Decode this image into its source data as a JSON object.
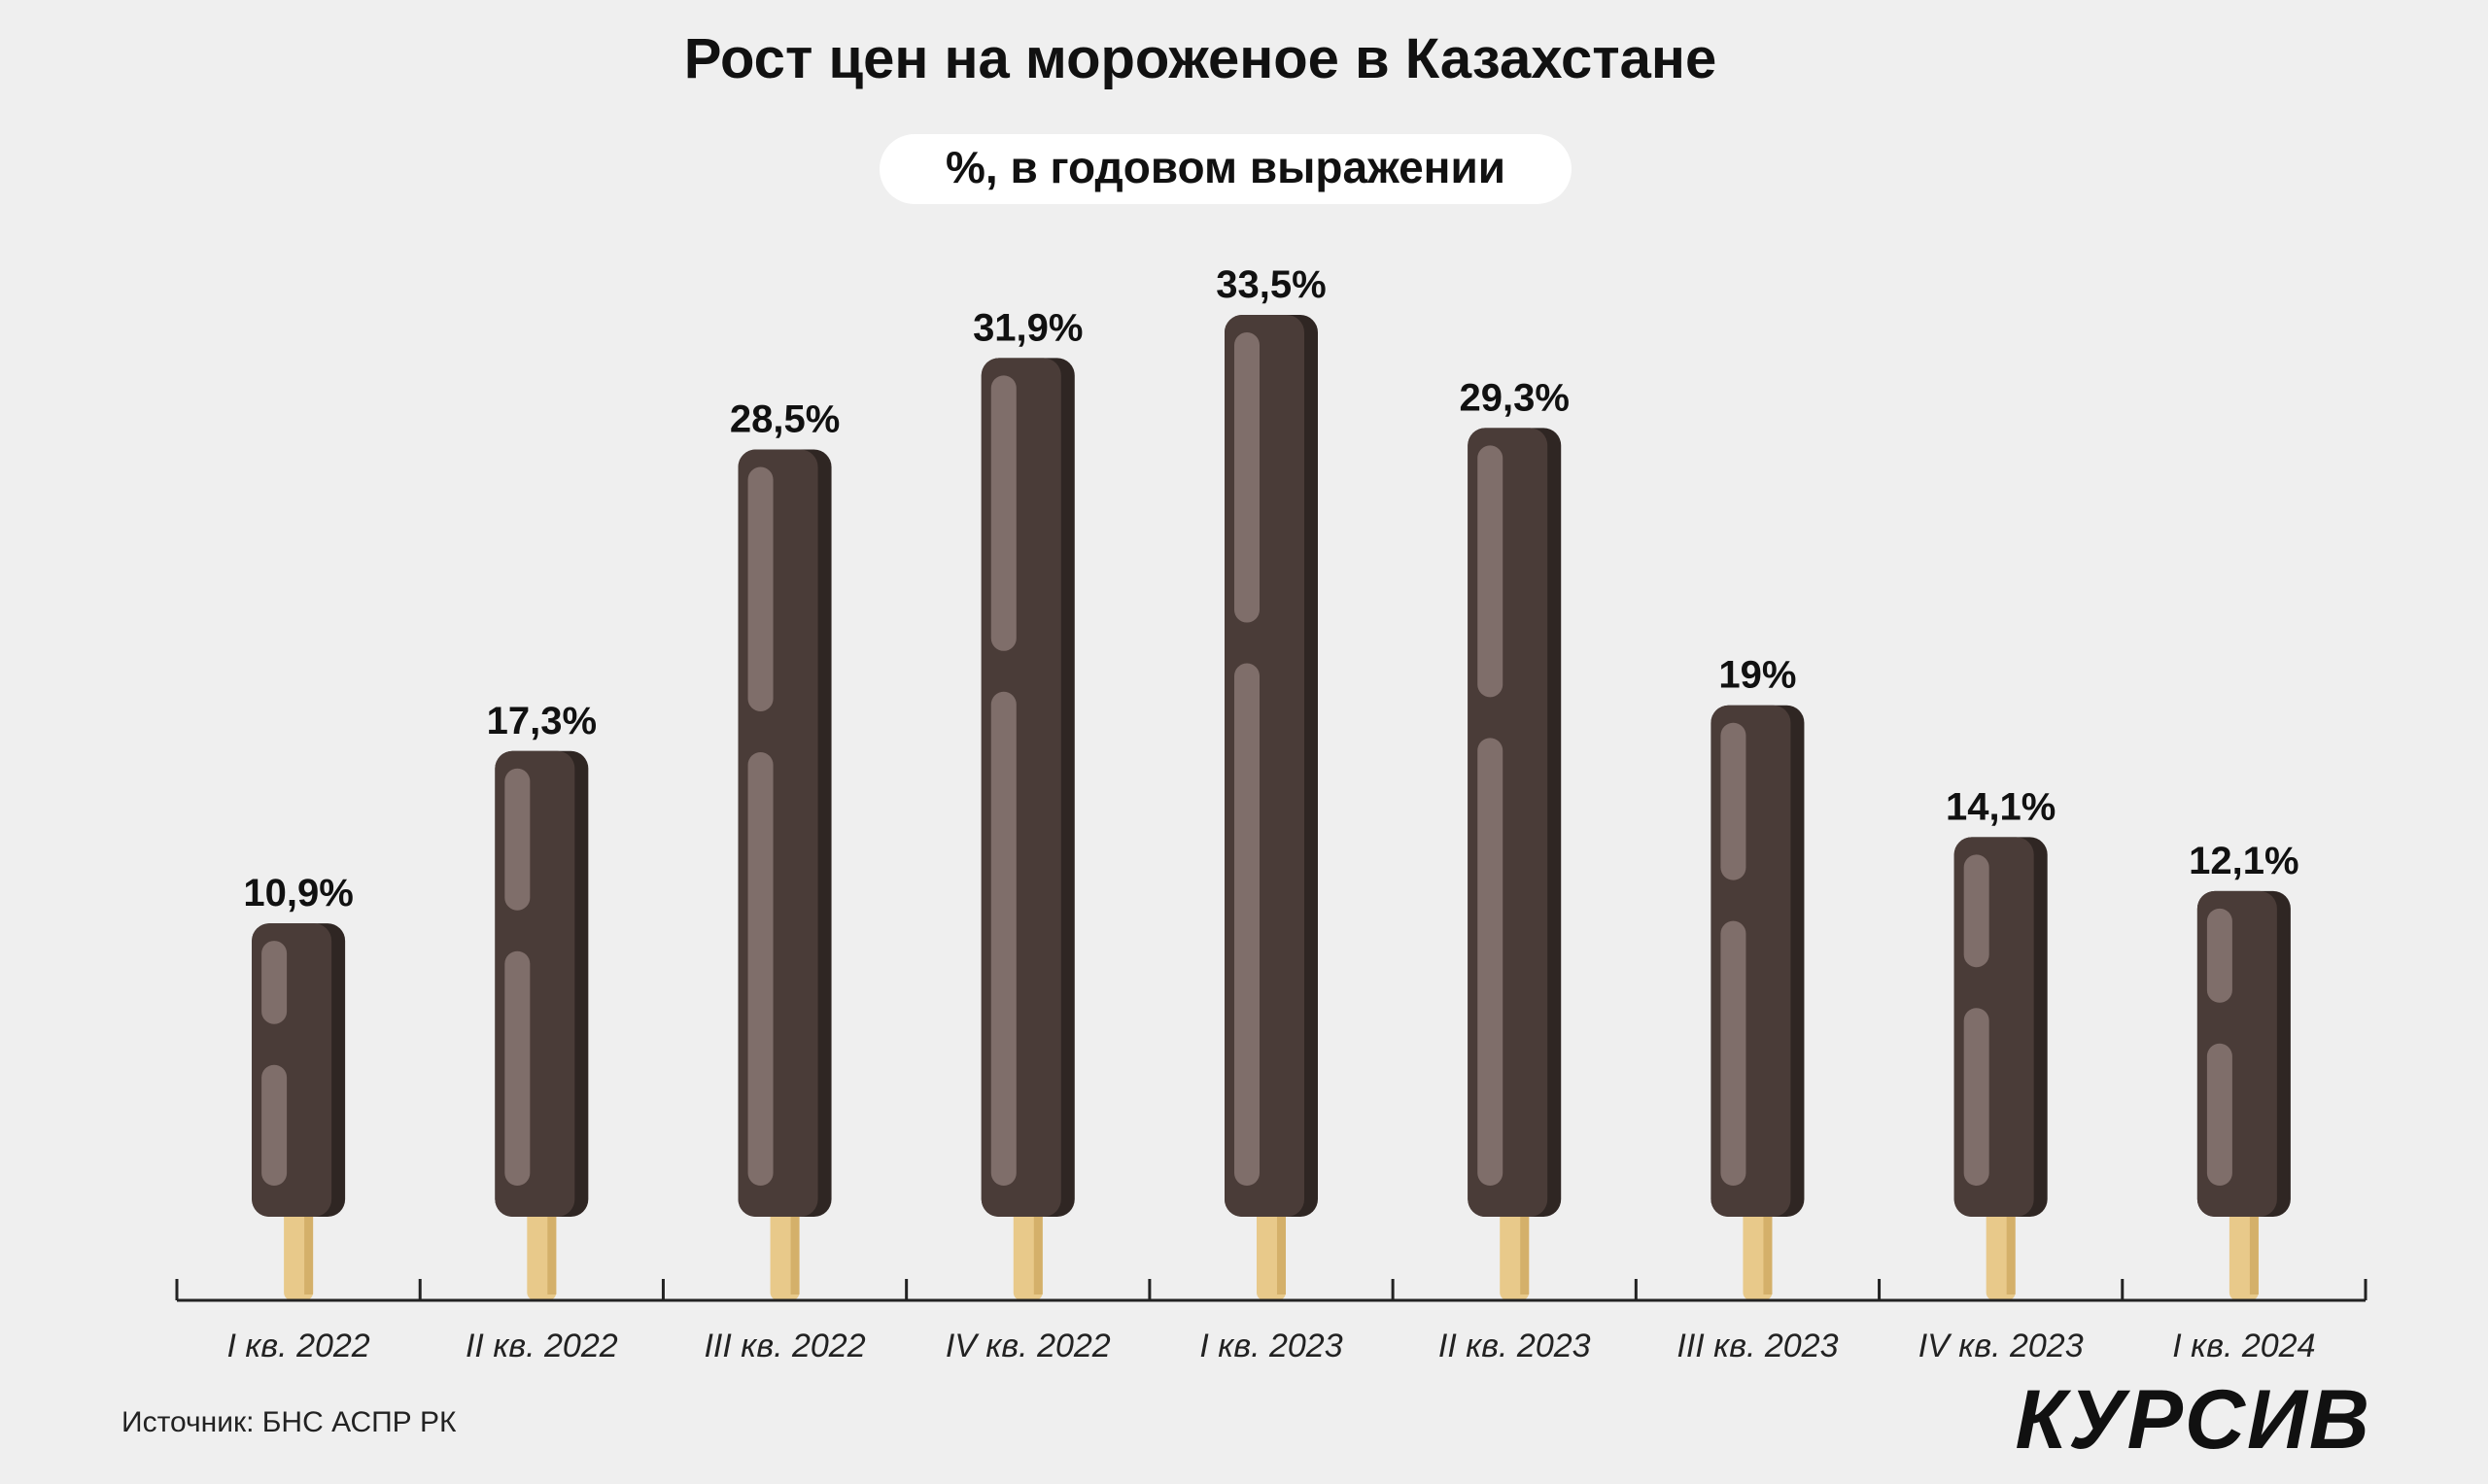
{
  "title": "Рост цен на мороженое в Казахстане",
  "subtitle": "%, в годовом выражении",
  "source": "Источник: БНС АСПР РК",
  "logo": "КУРСИВ",
  "colors": {
    "background": "#efefef",
    "bar": "#4a3c38",
    "bar_shadow": "#2f2623",
    "highlight": "#7f6e6a",
    "stick": "#e8c98a",
    "stick_shadow": "#d4b06a",
    "axis": "#222222"
  },
  "chart_data": {
    "type": "bar",
    "categories": [
      "I кв. 2022",
      "II кв. 2022",
      "III кв. 2022",
      "IV кв. 2022",
      "I кв. 2023",
      "II кв. 2023",
      "III кв. 2023",
      "IV кв. 2023",
      "I кв. 2024"
    ],
    "values": [
      10.9,
      17.3,
      28.5,
      31.9,
      33.5,
      29.3,
      19,
      14.1,
      12.1
    ],
    "labels": [
      "10,9%",
      "17,3%",
      "28,5%",
      "31,9%",
      "33,5%",
      "29,3%",
      "19%",
      "14,1%",
      "12,1%"
    ],
    "title": "Рост цен на мороженое в Казахстане",
    "subtitle": "%, в годовом выражении",
    "xlabel": "",
    "ylabel": "",
    "ylim": [
      0,
      35
    ],
    "grid": false,
    "legend": "none"
  }
}
